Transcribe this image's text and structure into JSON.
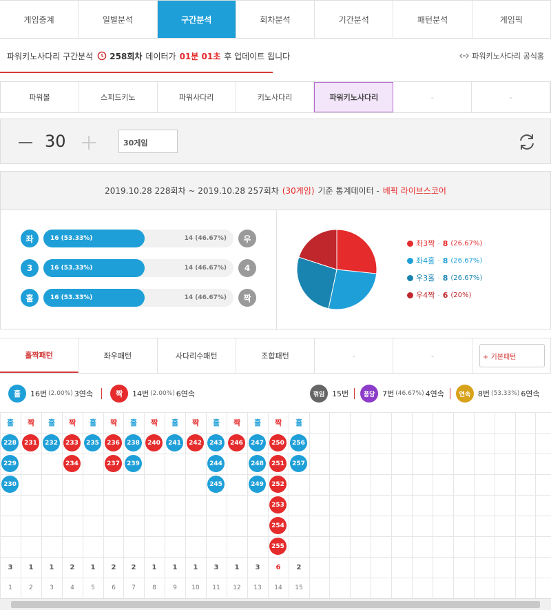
{
  "nav_tabs": [
    "게임중계",
    "일별분석",
    "구간분석",
    "회차분석",
    "기간분석",
    "패턴분석",
    "게임픽"
  ],
  "nav_active": 2,
  "info": {
    "prefix": "파워키노사다리 구간분석",
    "round": "258회차",
    "mid": "데이터가",
    "time": "01분 01초",
    "suffix": "후 업데이트 됩니다",
    "official": "파워키노사다리 공식홈"
  },
  "game_tabs": [
    "파워볼",
    "스피드키노",
    "파워사다리",
    "키노사다리",
    "파워키노사다리",
    "-",
    "-"
  ],
  "game_active": 4,
  "control": {
    "value": "30",
    "select": "30게임"
  },
  "stat_header": {
    "range": "2019.10.28 228회차 ~ 2019.10.28 257회차",
    "games": "(30게임)",
    "mid": "기준 통계데이터 -",
    "source": "베픽 라이브스코어"
  },
  "bars": [
    {
      "left": "좌",
      "left_val": "16 (53.33%)",
      "left_pct": 53.33,
      "right_val": "14 (46.67%)",
      "right": "우"
    },
    {
      "left": "3",
      "left_val": "16 (53.33%)",
      "left_pct": 53.33,
      "right_val": "14 (46.67%)",
      "right": "4"
    },
    {
      "left": "홀",
      "left_val": "16 (53.33%)",
      "left_pct": 53.33,
      "right_val": "14 (46.67%)",
      "right": "짝"
    }
  ],
  "colors": {
    "red": "#e52b2b",
    "blue": "#1e9fd8",
    "teal": "#1a84b0",
    "darkred": "#c0272d",
    "purple": "#8c3cc9",
    "gold": "#d9a21b",
    "grey": "#666666"
  },
  "chart_data": {
    "type": "pie",
    "slices": [
      {
        "label": "좌3짝",
        "value": 8,
        "pct": "(26.67%)",
        "color": "#e52b2b"
      },
      {
        "label": "좌4홀",
        "value": 8,
        "pct": "(26.67%)",
        "color": "#1e9fd8"
      },
      {
        "label": "우3홀",
        "value": 8,
        "pct": "(26.67%)",
        "color": "#1a84b0"
      },
      {
        "label": "우4짝",
        "value": 6,
        "pct": "(20%)",
        "color": "#c0272d"
      }
    ]
  },
  "pattern_tabs": [
    "홀짝패턴",
    "좌우패턴",
    "사다리수패턴",
    "조합패턴",
    "-",
    "-"
  ],
  "pattern_active": 0,
  "basic_btn": "+ 기본패턴",
  "summary": {
    "odd": {
      "label": "홀",
      "text": "16번",
      "pct": "(2.00%)",
      "streak": "3연속"
    },
    "even": {
      "label": "짝",
      "text": "14번",
      "pct": "(2.00%)",
      "streak": "6연속"
    },
    "break": {
      "label": "꺾임",
      "text": "15번"
    },
    "pong": {
      "label": "퐁당",
      "text": "7번",
      "pct": "(46.67%)",
      "streak": "4연속"
    },
    "cont": {
      "label": "연속",
      "text": "8번",
      "pct": "(53.33%)",
      "streak": "6연속"
    }
  },
  "columns": [
    {
      "h": "홀",
      "type": "odd",
      "nums": [
        "228",
        "229",
        "230"
      ]
    },
    {
      "h": "짝",
      "type": "even",
      "nums": [
        "231"
      ]
    },
    {
      "h": "홀",
      "type": "odd",
      "nums": [
        "232"
      ]
    },
    {
      "h": "짝",
      "type": "even",
      "nums": [
        "233",
        "234"
      ]
    },
    {
      "h": "홀",
      "type": "odd",
      "nums": [
        "235"
      ]
    },
    {
      "h": "짝",
      "type": "even",
      "nums": [
        "236",
        "237"
      ]
    },
    {
      "h": "홀",
      "type": "odd",
      "nums": [
        "238",
        "239"
      ]
    },
    {
      "h": "짝",
      "type": "even",
      "nums": [
        "240"
      ]
    },
    {
      "h": "홀",
      "type": "odd",
      "nums": [
        "241"
      ]
    },
    {
      "h": "짝",
      "type": "even",
      "nums": [
        "242"
      ]
    },
    {
      "h": "홀",
      "type": "odd",
      "nums": [
        "243",
        "244",
        "245"
      ]
    },
    {
      "h": "짝",
      "type": "even",
      "nums": [
        "246"
      ]
    },
    {
      "h": "홀",
      "type": "odd",
      "nums": [
        "247",
        "248",
        "249"
      ]
    },
    {
      "h": "짝",
      "type": "even",
      "nums": [
        "250",
        "251",
        "252",
        "253",
        "254",
        "255"
      ]
    },
    {
      "h": "홀",
      "type": "odd",
      "nums": [
        "256",
        "257"
      ]
    }
  ],
  "counts": [
    "3",
    "1",
    "1",
    "2",
    "1",
    "2",
    "2",
    "1",
    "1",
    "1",
    "3",
    "1",
    "3",
    "6",
    "2"
  ],
  "indexes": [
    "1",
    "2",
    "3",
    "4",
    "5",
    "6",
    "7",
    "8",
    "9",
    "10",
    "11",
    "12",
    "13",
    "14",
    "15"
  ]
}
